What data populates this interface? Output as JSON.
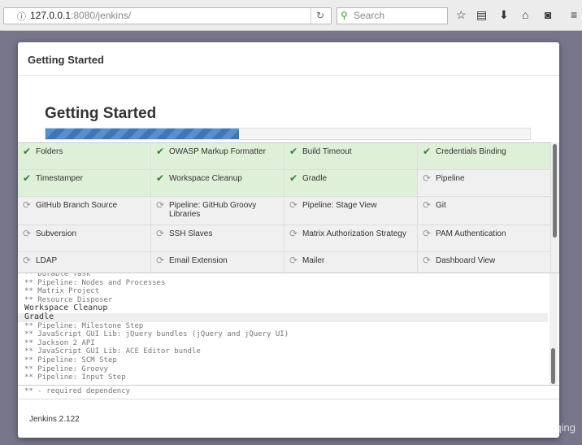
{
  "browser": {
    "url_host": "127.0.0.1",
    "url_rest": ":8080/jenkins/",
    "search_placeholder": "Search"
  },
  "modal": {
    "header": "Getting Started",
    "title": "Getting Started",
    "progress_percent": 40
  },
  "plugins": [
    {
      "name": "Folders",
      "status": "installed"
    },
    {
      "name": "OWASP Markup Formatter",
      "status": "installed"
    },
    {
      "name": "Build Timeout",
      "status": "installed"
    },
    {
      "name": "Credentials Binding",
      "status": "installed"
    },
    {
      "name": "Timestamper",
      "status": "installed"
    },
    {
      "name": "Workspace Cleanup",
      "status": "installed"
    },
    {
      "name": "Gradle",
      "status": "installed"
    },
    {
      "name": "Pipeline",
      "status": "pending"
    },
    {
      "name": "GitHub Branch Source",
      "status": "pending"
    },
    {
      "name": "Pipeline: GitHub Groovy Libraries",
      "status": "pending"
    },
    {
      "name": "Pipeline: Stage View",
      "status": "pending"
    },
    {
      "name": "Git",
      "status": "pending"
    },
    {
      "name": "Subversion",
      "status": "pending"
    },
    {
      "name": "SSH Slaves",
      "status": "pending"
    },
    {
      "name": "Matrix Authorization Strategy",
      "status": "pending"
    },
    {
      "name": "PAM Authentication",
      "status": "pending"
    },
    {
      "name": "LDAP",
      "status": "pending"
    },
    {
      "name": "Email Extension",
      "status": "pending"
    },
    {
      "name": "Mailer",
      "status": "pending"
    },
    {
      "name": "Dashboard View",
      "status": "pending"
    }
  ],
  "log": [
    {
      "text": "** Durable Task",
      "type": "dep"
    },
    {
      "text": "** Pipeline: Nodes and Processes",
      "type": "dep"
    },
    {
      "text": "** Matrix Project",
      "type": "dep"
    },
    {
      "text": "** Resource Disposer",
      "type": "dep"
    },
    {
      "text": "Workspace Cleanup",
      "type": "main"
    },
    {
      "text": "Gradle",
      "type": "current"
    },
    {
      "text": "** Pipeline: Milestone Step",
      "type": "dep"
    },
    {
      "text": "** JavaScript GUI Lib: jQuery bundles (jQuery and jQuery UI)",
      "type": "dep"
    },
    {
      "text": "** Jackson 2 API",
      "type": "dep"
    },
    {
      "text": "** JavaScript GUI Lib: ACE Editor bundle",
      "type": "dep"
    },
    {
      "text": "** Pipeline: SCM Step",
      "type": "dep"
    },
    {
      "text": "** Pipeline: Groovy",
      "type": "dep"
    },
    {
      "text": "** Pipeline: Input Step",
      "type": "dep"
    }
  ],
  "legend": "** - required dependency",
  "footer": "Jenkins 2.122",
  "watermark": "https://blog.csdn.net/kakaops_qing"
}
